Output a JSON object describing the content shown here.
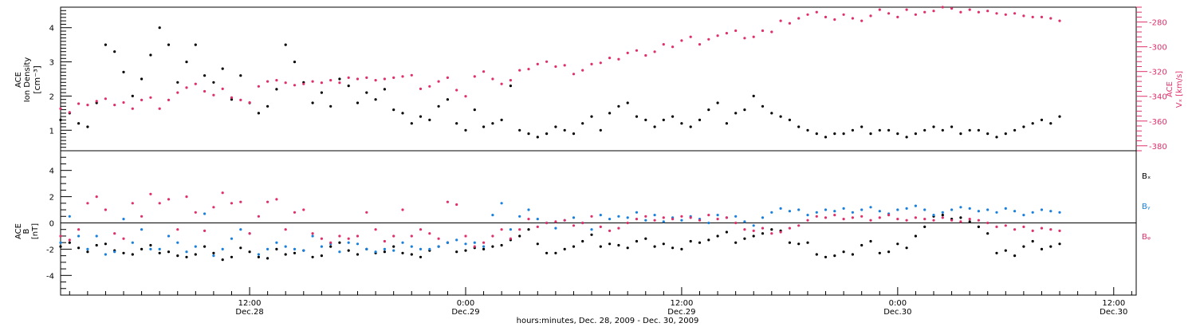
{
  "title": "",
  "colors": {
    "density": "#000000",
    "vx": "#e0306a",
    "bx": "#000000",
    "by": "#1a80dd",
    "bz": "#e0306a"
  },
  "x_axis": {
    "caption": "hours:minutes, Dec. 28, 2009 - Dec. 30, 2009",
    "range_hours": [
      1.5,
      61.25
    ],
    "major_ticks": [
      {
        "hours": 12,
        "time": "12:00",
        "date": "Dec.28"
      },
      {
        "hours": 24,
        "time": "0:00",
        "date": "Dec.29"
      },
      {
        "hours": 36,
        "time": "12:00",
        "date": "Dec.29"
      },
      {
        "hours": 48,
        "time": "0:00",
        "date": "Dec.30"
      },
      {
        "hours": 60,
        "time": "12:00",
        "date": "Dec.30"
      }
    ]
  },
  "top_panel": {
    "left_label_lines": [
      "ACE",
      "Ion Density",
      "[cm⁻³]"
    ],
    "right_label_lines": [
      "ACE",
      "Vₓ [km/s]"
    ],
    "left_ticks": [
      "1",
      "2",
      "3",
      "4"
    ],
    "right_ticks": [
      "-280",
      "-300",
      "-320",
      "-340",
      "-360",
      "-380"
    ]
  },
  "bottom_panel": {
    "left_label_lines": [
      "ACE",
      "B",
      "[nT]"
    ],
    "ticks": [
      "-4",
      "-2",
      "0",
      "2",
      "4"
    ],
    "legend": [
      "Bₓ",
      "Bᵧ",
      "Bᵩ"
    ]
  },
  "chart_data": [
    {
      "type": "scatter",
      "panel": "top",
      "xlabel": "hours:minutes, Dec. 28, 2009 - Dec. 30, 2009",
      "x_units": "hours since Dec. 28 00:00",
      "series": [
        {
          "axis": "left",
          "ylabel": "ACE Ion Density [cm⁻³]",
          "ylim": [
            0.4,
            4.6
          ],
          "x": [
            1.5,
            2,
            2.5,
            3,
            3.5,
            4,
            4.5,
            5,
            5.5,
            6,
            6.5,
            7,
            7.5,
            8,
            8.5,
            9,
            9.5,
            10,
            10.5,
            11,
            11.5,
            12,
            12.5,
            13,
            13.5,
            14,
            14.5,
            15,
            15.5,
            16,
            16.5,
            17,
            17.5,
            18,
            18.5,
            19,
            19.5,
            20,
            20.5,
            21,
            21.5,
            22,
            22.5,
            23,
            23.5,
            24,
            24.5,
            25,
            25.5,
            26,
            26.5,
            27,
            27.5,
            28,
            28.5,
            29,
            29.5,
            30,
            30.5,
            31,
            31.5,
            32,
            32.5,
            33,
            33.5,
            34,
            34.5,
            35,
            35.5,
            36,
            36.5,
            37,
            37.5,
            38,
            38.5,
            39,
            39.5,
            40,
            40.5,
            41,
            41.5,
            42,
            42.5,
            43,
            43.5,
            44,
            44.5,
            45,
            45.5,
            46,
            46.5,
            47,
            47.5,
            48,
            48.5,
            49,
            49.5,
            50,
            50.5,
            51,
            51.5,
            52,
            52.5,
            53,
            53.5,
            54,
            54.5,
            55,
            55.5,
            56,
            56.5,
            57
          ],
          "y": [
            1.3,
            1.5,
            1.2,
            1.1,
            1.8,
            3.5,
            3.3,
            2.7,
            2.0,
            2.5,
            3.2,
            4.0,
            3.5,
            2.4,
            3.0,
            3.5,
            2.6,
            2.4,
            2.8,
            1.9,
            2.6,
            1.8,
            1.5,
            1.7,
            2.2,
            3.5,
            3.0,
            2.4,
            1.8,
            2.1,
            1.7,
            2.5,
            2.3,
            1.8,
            2.1,
            1.9,
            2.2,
            1.6,
            1.5,
            1.2,
            1.4,
            1.3,
            1.7,
            1.9,
            1.2,
            1.0,
            1.6,
            1.1,
            1.2,
            1.3,
            2.3,
            1.0,
            0.9,
            0.8,
            0.9,
            1.1,
            1.0,
            0.9,
            1.2,
            1.4,
            1.0,
            1.5,
            1.7,
            1.8,
            1.4,
            1.3,
            1.1,
            1.3,
            1.4,
            1.2,
            1.1,
            1.3,
            1.6,
            1.8,
            1.2,
            1.5,
            1.6,
            2.0,
            1.7,
            1.5,
            1.4,
            1.3,
            1.1,
            1.0,
            0.9,
            0.8,
            0.9,
            0.9,
            1.0,
            1.1,
            0.9,
            1.0,
            1.0,
            0.9,
            0.8,
            0.9,
            1.0,
            1.1,
            1.0,
            1.1,
            0.9,
            1.0,
            1.0,
            0.9,
            0.8,
            0.9,
            1.0,
            1.1,
            1.2,
            1.3,
            1.2,
            1.4
          ]
        },
        {
          "axis": "right",
          "ylabel": "ACE Vₓ [km/s]",
          "ylim": [
            -384,
            -268
          ],
          "x": [
            1.5,
            2,
            2.5,
            3,
            3.5,
            4,
            4.5,
            5,
            5.5,
            6,
            6.5,
            7,
            7.5,
            8,
            8.5,
            9,
            9.5,
            10,
            10.5,
            11,
            11.5,
            12,
            12.5,
            13,
            13.5,
            14,
            14.5,
            15,
            15.5,
            16,
            16.5,
            17,
            17.5,
            18,
            18.5,
            19,
            19.5,
            20,
            20.5,
            21,
            21.5,
            22,
            22.5,
            23,
            23.5,
            24,
            24.5,
            25,
            25.5,
            26,
            26.5,
            27,
            27.5,
            28,
            28.5,
            29,
            29.5,
            30,
            30.5,
            31,
            31.5,
            32,
            32.5,
            33,
            33.5,
            34,
            34.5,
            35,
            35.5,
            36,
            36.5,
            37,
            37.5,
            38,
            38.5,
            39,
            39.5,
            40,
            40.5,
            41,
            41.5,
            42,
            42.5,
            43,
            43.5,
            44,
            44.5,
            45,
            45.5,
            46,
            46.5,
            47,
            47.5,
            48,
            48.5,
            49,
            49.5,
            50,
            50.5,
            51,
            51.5,
            52,
            52.5,
            53,
            53.5,
            54,
            54.5,
            55,
            55.5,
            56,
            56.5,
            57
          ],
          "y": [
            -350,
            -353,
            -346,
            -347,
            -344,
            -342,
            -347,
            -345,
            -350,
            -343,
            -341,
            -350,
            -343,
            -337,
            -333,
            -330,
            -336,
            -339,
            -334,
            -341,
            -343,
            -345,
            -332,
            -328,
            -327,
            -329,
            -331,
            -330,
            -328,
            -329,
            -327,
            -329,
            -325,
            -326,
            -325,
            -327,
            -326,
            -325,
            -324,
            -323,
            -334,
            -332,
            -328,
            -325,
            -335,
            -340,
            -324,
            -320,
            -326,
            -330,
            -327,
            -319,
            -318,
            -314,
            -312,
            -316,
            -315,
            -322,
            -319,
            -314,
            -313,
            -309,
            -310,
            -305,
            -303,
            -307,
            -304,
            -298,
            -300,
            -295,
            -292,
            -298,
            -294,
            -291,
            -289,
            -287,
            -293,
            -292,
            -287,
            -288,
            -279,
            -281,
            -277,
            -274,
            -272,
            -276,
            -278,
            -274,
            -277,
            -279,
            -275,
            -270,
            -273,
            -276,
            -270,
            -274,
            -272,
            -271,
            -268,
            -269,
            -272,
            -270,
            -272,
            -271,
            -273,
            -274,
            -273,
            -275,
            -276,
            -276,
            -277,
            -279
          ]
        }
      ]
    },
    {
      "type": "scatter",
      "panel": "bottom",
      "xlabel": "hours:minutes, Dec. 28, 2009 - Dec. 30, 2009",
      "x_units": "hours since Dec. 28 00:00",
      "ylabel": "ACE B [nT]",
      "ylim": [
        -5.5,
        5.5
      ],
      "x": [
        1.5,
        2,
        2.5,
        3,
        3.5,
        4,
        4.5,
        5,
        5.5,
        6,
        6.5,
        7,
        7.5,
        8,
        8.5,
        9,
        9.5,
        10,
        10.5,
        11,
        11.5,
        12,
        12.5,
        13,
        13.5,
        14,
        14.5,
        15,
        15.5,
        16,
        16.5,
        17,
        17.5,
        18,
        18.5,
        19,
        19.5,
        20,
        20.5,
        21,
        21.5,
        22,
        22.5,
        23,
        23.5,
        24,
        24.5,
        25,
        25.5,
        26,
        26.5,
        27,
        27.5,
        28,
        28.5,
        29,
        29.5,
        30,
        30.5,
        31,
        31.5,
        32,
        32.5,
        33,
        33.5,
        34,
        34.5,
        35,
        35.5,
        36,
        36.5,
        37,
        37.5,
        38,
        38.5,
        39,
        39.5,
        40,
        40.5,
        41,
        41.5,
        42,
        42.5,
        43,
        43.5,
        44,
        44.5,
        45,
        45.5,
        46,
        46.5,
        47,
        47.5,
        48,
        48.5,
        49,
        49.5,
        50,
        50.5,
        51,
        51.5,
        52,
        52.5,
        53,
        53.5,
        54,
        54.5,
        55,
        55.5,
        56,
        56.5,
        57
      ],
      "series": [
        {
          "name": "Bₓ",
          "values": [
            -1.8,
            -1.5,
            -1.9,
            -2.2,
            -1.7,
            -1.6,
            -2.1,
            -2.3,
            -2.4,
            -2.0,
            -1.7,
            -2.3,
            -2.2,
            -2.5,
            -2.6,
            -2.4,
            -1.8,
            -2.3,
            -2.8,
            -2.6,
            -1.9,
            -2.2,
            -2.6,
            -2.7,
            -2.0,
            -2.4,
            -2.3,
            -2.1,
            -2.6,
            -2.5,
            -1.8,
            -1.5,
            -2.1,
            -2.4,
            -2.0,
            -2.3,
            -2.2,
            -1.8,
            -2.3,
            -2.4,
            -2.6,
            -2.1,
            -1.8,
            -1.5,
            -2.2,
            -2.1,
            -1.9,
            -2.0,
            -1.8,
            -1.7,
            -1.3,
            -1.0,
            -0.5,
            -1.6,
            -2.3,
            -2.3,
            -2.0,
            -1.8,
            -1.4,
            -0.9,
            -1.8,
            -1.6,
            -1.7,
            -1.9,
            -1.4,
            -1.2,
            -1.8,
            -1.6,
            -1.9,
            -2.0,
            -1.4,
            -1.5,
            -1.3,
            -1.0,
            -0.7,
            -1.5,
            -1.2,
            -1.0,
            -0.8,
            -0.5,
            -0.6,
            -1.5,
            -1.6,
            -1.5,
            -2.4,
            -2.6,
            -2.5,
            -2.2,
            -2.4,
            -1.7,
            -1.4,
            -2.3,
            -2.2,
            -1.6,
            -1.9,
            -1.0,
            -0.3,
            0.5,
            0.6,
            0.3,
            0.4,
            0.1,
            -0.3,
            -0.8,
            -2.3,
            -2.1,
            -2.5,
            -1.8,
            -1.4,
            -2.0,
            -1.8,
            -1.6
          ]
        },
        {
          "name": "Bᵧ",
          "values": [
            -1.5,
            0.5,
            -1.0,
            -2.0,
            -1.0,
            -2.4,
            -2.2,
            0.3,
            -1.5,
            -0.5,
            -2.0,
            -2.0,
            -1.0,
            -1.5,
            -2.2,
            -1.8,
            0.7,
            -2.5,
            -2.0,
            -1.2,
            -0.5,
            -0.8,
            -2.4,
            -2.0,
            -1.5,
            -1.8,
            -2.0,
            -2.1,
            -1.0,
            -1.8,
            -1.6,
            -2.2,
            -1.5,
            -1.6,
            -2.0,
            -2.2,
            -2.0,
            -2.1,
            -1.5,
            -1.8,
            -2.0,
            -2.0,
            -1.8,
            -1.5,
            -1.3,
            -1.6,
            -1.5,
            -1.8,
            0.6,
            1.5,
            -0.5,
            0.5,
            1.0,
            0.3,
            0.0,
            -0.4,
            0.2,
            0.4,
            0.0,
            -0.5,
            0.6,
            0.3,
            0.5,
            0.4,
            0.8,
            0.2,
            0.6,
            0.1,
            0.4,
            0.2,
            0.5,
            0.3,
            0.0,
            0.6,
            0.4,
            0.5,
            0.1,
            -0.2,
            0.4,
            0.8,
            1.1,
            0.9,
            1.0,
            0.6,
            0.8,
            1.0,
            0.9,
            1.1,
            0.8,
            1.0,
            1.2,
            0.9,
            0.7,
            1.0,
            1.1,
            1.3,
            1.0,
            0.6,
            0.8,
            1.0,
            1.2,
            1.1,
            0.9,
            1.0,
            0.8,
            1.1,
            0.9,
            0.6,
            0.8,
            1.0,
            0.9,
            0.8
          ]
        },
        {
          "name": "Bᵩ",
          "values": [
            -1.0,
            -1.3,
            -0.5,
            1.5,
            2.0,
            1.0,
            -0.8,
            -1.2,
            1.5,
            0.5,
            2.2,
            1.5,
            1.8,
            -0.5,
            2.0,
            0.8,
            -0.6,
            1.2,
            2.3,
            1.5,
            1.6,
            -0.8,
            0.5,
            1.6,
            1.8,
            -0.5,
            0.8,
            1.0,
            -0.8,
            -1.2,
            -1.5,
            -1.0,
            -1.2,
            -1.0,
            0.8,
            -0.5,
            -1.4,
            -1.0,
            1.0,
            -1.0,
            -0.5,
            -0.8,
            -1.2,
            1.6,
            1.4,
            -1.0,
            -1.8,
            -1.5,
            -1.0,
            -0.5,
            -1.2,
            -0.5,
            0.3,
            -0.3,
            0.0,
            0.1,
            0.2,
            -0.2,
            0.0,
            0.5,
            -0.3,
            -0.6,
            -0.4,
            0.0,
            0.3,
            0.5,
            0.2,
            0.4,
            0.3,
            0.5,
            0.4,
            0.2,
            0.6,
            0.3,
            0.4,
            0.0,
            -0.5,
            -0.6,
            -0.4,
            -0.8,
            -0.7,
            -0.4,
            -0.2,
            0.2,
            0.5,
            0.4,
            0.6,
            0.3,
            0.4,
            0.5,
            0.2,
            0.4,
            0.6,
            0.3,
            0.2,
            0.4,
            0.3,
            0.2,
            0.4,
            0.2,
            0.1,
            0.3,
            0.2,
            0.0,
            -0.3,
            -0.2,
            -0.5,
            -0.3,
            -0.6,
            -0.4,
            -0.5,
            -0.6
          ]
        }
      ]
    }
  ]
}
